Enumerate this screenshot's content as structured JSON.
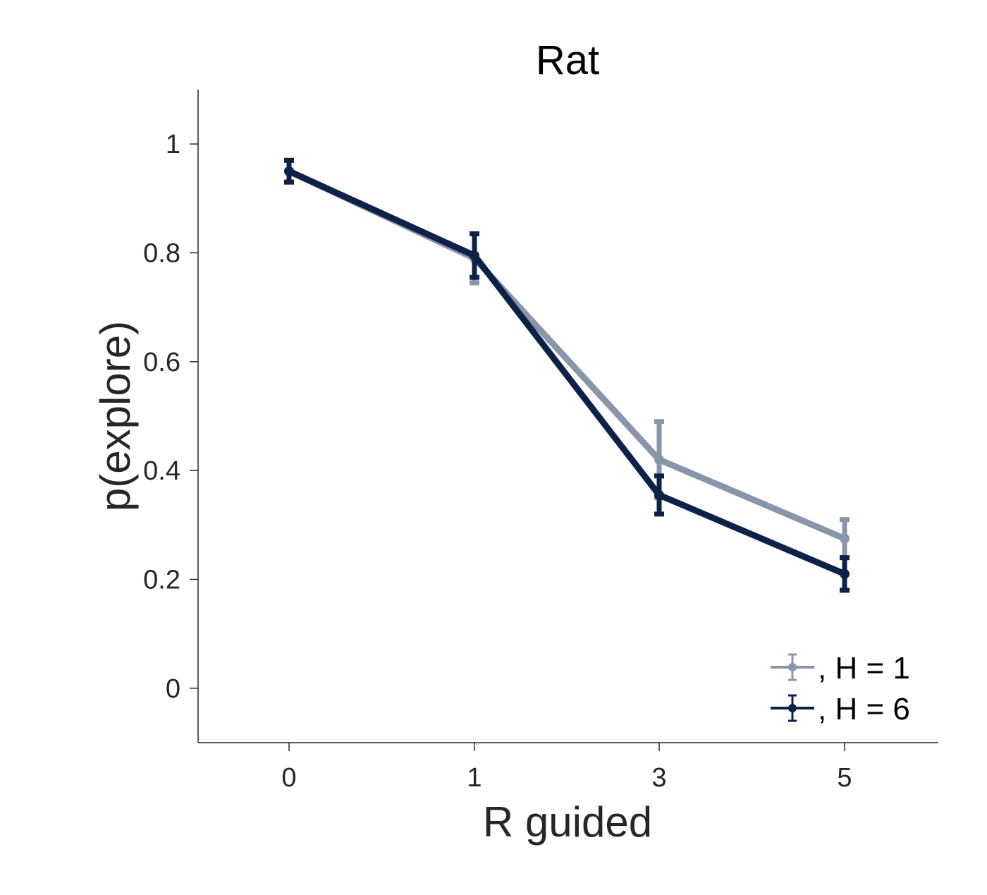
{
  "chart_data": {
    "type": "line",
    "title": "Rat",
    "xlabel": "R guided",
    "ylabel": "p(explore)",
    "categories": [
      "0",
      "1",
      "3",
      "5"
    ],
    "yticks": [
      "0",
      "0.2",
      "0.4",
      "0.6",
      "0.8",
      "1"
    ],
    "ylim": [
      -0.1,
      1.1
    ],
    "grid": false,
    "legend_position": "bottom-right",
    "series": [
      {
        "name": ", H = 1",
        "color": "#8995a8",
        "values": [
          0.95,
          0.79,
          0.42,
          0.275
        ],
        "errors": [
          0.02,
          0.045,
          0.07,
          0.035
        ]
      },
      {
        "name": ", H = 6",
        "color": "#0e2249",
        "values": [
          0.95,
          0.795,
          0.355,
          0.21
        ],
        "errors": [
          0.02,
          0.04,
          0.035,
          0.03
        ]
      }
    ]
  }
}
